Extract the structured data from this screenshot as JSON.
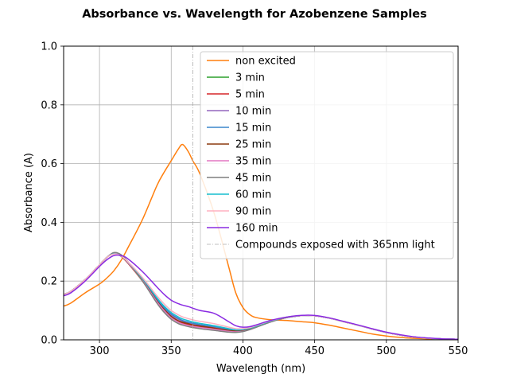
{
  "chart_data": {
    "type": "line",
    "title": "Absorbance vs. Wavelength for Azobenzene Samples",
    "xlabel": "Wavelength (nm)",
    "ylabel": "Absorbance (A)",
    "xlim": [
      275,
      550
    ],
    "ylim": [
      0,
      1.0
    ],
    "xticks": [
      300,
      350,
      400,
      450,
      500,
      550
    ],
    "yticks": [
      0.0,
      0.2,
      0.4,
      0.6,
      0.8,
      1.0
    ],
    "xtick_labels": [
      "300",
      "350",
      "400",
      "450",
      "500",
      "550"
    ],
    "ytick_labels": [
      "0.0",
      "0.2",
      "0.4",
      "0.6",
      "0.8",
      "1.0"
    ],
    "grid": true,
    "legend_position": "upper-right",
    "vline": {
      "x": 365,
      "label": "Compounds exposed with 365nm light",
      "color": "#aaaaaa"
    },
    "x": [
      275,
      280,
      290,
      300,
      305,
      310,
      315,
      320,
      330,
      340,
      345,
      350,
      355,
      358,
      362,
      365,
      370,
      380,
      390,
      395,
      400,
      405,
      410,
      420,
      430,
      440,
      450,
      460,
      470,
      480,
      490,
      500,
      510,
      520,
      530,
      540,
      550
    ],
    "series": [
      {
        "name": "non excited",
        "color": "#ff7f0e",
        "values": [
          0.115,
          0.125,
          0.16,
          0.19,
          0.21,
          0.235,
          0.27,
          0.315,
          0.41,
          0.525,
          0.57,
          0.61,
          0.65,
          0.665,
          0.64,
          0.61,
          0.565,
          0.43,
          0.25,
          0.16,
          0.11,
          0.085,
          0.075,
          0.068,
          0.066,
          0.062,
          0.058,
          0.05,
          0.04,
          0.03,
          0.02,
          0.013,
          0.008,
          0.005,
          0.003,
          0.002,
          0.001
        ]
      },
      {
        "name": "3 min",
        "color": "#2ca02c",
        "values": [
          0.155,
          0.165,
          0.205,
          0.255,
          0.28,
          0.295,
          0.285,
          0.26,
          0.2,
          0.13,
          0.1,
          0.075,
          0.06,
          0.055,
          0.05,
          0.047,
          0.043,
          0.037,
          0.03,
          0.028,
          0.03,
          0.036,
          0.045,
          0.062,
          0.075,
          0.082,
          0.082,
          0.074,
          0.062,
          0.05,
          0.037,
          0.025,
          0.016,
          0.009,
          0.005,
          0.003,
          0.002
        ]
      },
      {
        "name": "5 min",
        "color": "#d62728",
        "values": [
          0.155,
          0.165,
          0.205,
          0.255,
          0.28,
          0.295,
          0.285,
          0.26,
          0.2,
          0.13,
          0.1,
          0.078,
          0.063,
          0.057,
          0.052,
          0.049,
          0.045,
          0.039,
          0.031,
          0.029,
          0.031,
          0.037,
          0.046,
          0.063,
          0.076,
          0.082,
          0.082,
          0.074,
          0.062,
          0.05,
          0.037,
          0.025,
          0.016,
          0.009,
          0.005,
          0.003,
          0.002
        ]
      },
      {
        "name": "10 min",
        "color": "#9467bd",
        "values": [
          0.155,
          0.165,
          0.205,
          0.255,
          0.28,
          0.295,
          0.287,
          0.263,
          0.205,
          0.137,
          0.108,
          0.085,
          0.07,
          0.064,
          0.058,
          0.055,
          0.05,
          0.043,
          0.034,
          0.031,
          0.032,
          0.038,
          0.047,
          0.064,
          0.076,
          0.082,
          0.082,
          0.074,
          0.062,
          0.05,
          0.037,
          0.025,
          0.016,
          0.009,
          0.005,
          0.003,
          0.002
        ]
      },
      {
        "name": "15 min",
        "color": "#3a85cc",
        "values": [
          0.155,
          0.165,
          0.205,
          0.255,
          0.28,
          0.295,
          0.287,
          0.263,
          0.205,
          0.138,
          0.11,
          0.088,
          0.073,
          0.066,
          0.06,
          0.057,
          0.052,
          0.045,
          0.036,
          0.032,
          0.033,
          0.039,
          0.047,
          0.064,
          0.076,
          0.082,
          0.082,
          0.074,
          0.062,
          0.05,
          0.037,
          0.025,
          0.016,
          0.009,
          0.005,
          0.003,
          0.002
        ]
      },
      {
        "name": "25 min",
        "color": "#8c3a0e",
        "values": [
          0.155,
          0.165,
          0.205,
          0.255,
          0.28,
          0.295,
          0.286,
          0.262,
          0.203,
          0.133,
          0.104,
          0.08,
          0.065,
          0.06,
          0.055,
          0.051,
          0.047,
          0.04,
          0.032,
          0.03,
          0.031,
          0.037,
          0.046,
          0.063,
          0.076,
          0.082,
          0.082,
          0.074,
          0.062,
          0.05,
          0.037,
          0.025,
          0.016,
          0.009,
          0.005,
          0.003,
          0.002
        ]
      },
      {
        "name": "35 min",
        "color": "#e377c2",
        "values": [
          0.155,
          0.165,
          0.205,
          0.255,
          0.28,
          0.295,
          0.286,
          0.262,
          0.202,
          0.13,
          0.1,
          0.075,
          0.06,
          0.054,
          0.049,
          0.046,
          0.042,
          0.036,
          0.029,
          0.027,
          0.029,
          0.035,
          0.045,
          0.062,
          0.075,
          0.082,
          0.082,
          0.074,
          0.062,
          0.05,
          0.037,
          0.025,
          0.016,
          0.009,
          0.005,
          0.003,
          0.002
        ]
      },
      {
        "name": "45 min",
        "color": "#7f7f7f",
        "values": [
          0.155,
          0.165,
          0.205,
          0.255,
          0.28,
          0.297,
          0.29,
          0.265,
          0.2,
          0.125,
          0.094,
          0.07,
          0.055,
          0.05,
          0.045,
          0.042,
          0.038,
          0.032,
          0.026,
          0.025,
          0.028,
          0.035,
          0.044,
          0.062,
          0.075,
          0.082,
          0.082,
          0.074,
          0.062,
          0.05,
          0.037,
          0.025,
          0.016,
          0.009,
          0.005,
          0.003,
          0.002
        ]
      },
      {
        "name": "60 min",
        "color": "#17becf",
        "values": [
          0.155,
          0.165,
          0.205,
          0.255,
          0.28,
          0.293,
          0.286,
          0.264,
          0.209,
          0.143,
          0.115,
          0.093,
          0.078,
          0.071,
          0.065,
          0.061,
          0.056,
          0.048,
          0.038,
          0.034,
          0.035,
          0.04,
          0.048,
          0.065,
          0.077,
          0.082,
          0.082,
          0.074,
          0.062,
          0.05,
          0.037,
          0.025,
          0.016,
          0.009,
          0.005,
          0.003,
          0.002
        ]
      },
      {
        "name": "90 min",
        "color": "#ffb0c0",
        "values": [
          0.155,
          0.165,
          0.205,
          0.255,
          0.28,
          0.292,
          0.286,
          0.265,
          0.212,
          0.15,
          0.123,
          0.1,
          0.085,
          0.078,
          0.072,
          0.068,
          0.063,
          0.055,
          0.043,
          0.038,
          0.038,
          0.042,
          0.05,
          0.066,
          0.077,
          0.082,
          0.082,
          0.074,
          0.062,
          0.05,
          0.037,
          0.025,
          0.016,
          0.009,
          0.005,
          0.003,
          0.002
        ]
      },
      {
        "name": "160 min",
        "color": "#8a2be2",
        "values": [
          0.15,
          0.16,
          0.2,
          0.25,
          0.272,
          0.287,
          0.287,
          0.275,
          0.232,
          0.18,
          0.155,
          0.135,
          0.123,
          0.118,
          0.113,
          0.108,
          0.1,
          0.09,
          0.062,
          0.048,
          0.043,
          0.045,
          0.052,
          0.067,
          0.077,
          0.083,
          0.083,
          0.075,
          0.063,
          0.051,
          0.038,
          0.026,
          0.017,
          0.01,
          0.006,
          0.003,
          0.002
        ]
      }
    ]
  }
}
